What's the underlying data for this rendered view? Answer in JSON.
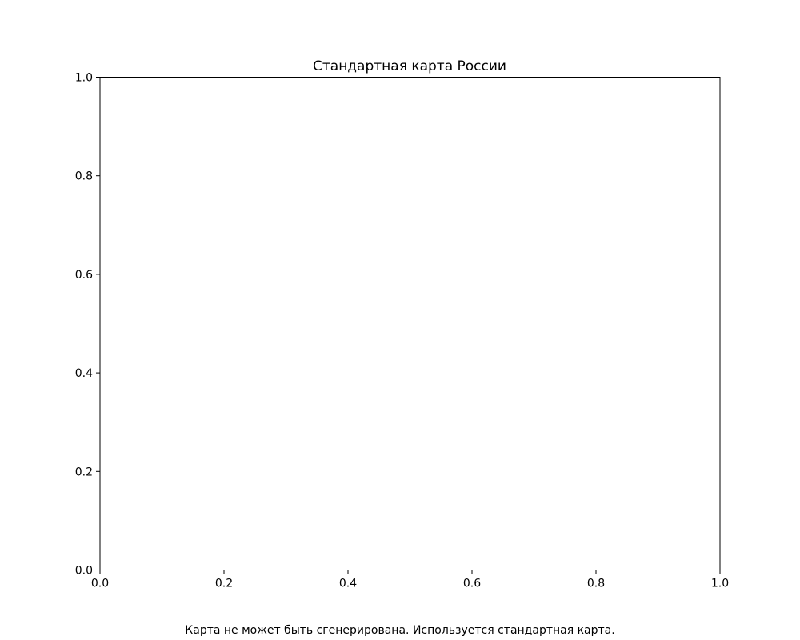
{
  "chart_data": {
    "type": "line",
    "title": "Стандартная карта России",
    "xlabel": "",
    "ylabel": "",
    "xlim": [
      0.0,
      1.0
    ],
    "ylim": [
      0.0,
      1.0
    ],
    "x_ticks": [
      0.0,
      0.2,
      0.4,
      0.6,
      0.8,
      1.0
    ],
    "y_ticks": [
      0.0,
      0.2,
      0.4,
      0.6,
      0.8,
      1.0
    ],
    "x_tick_labels": [
      "0.0",
      "0.2",
      "0.4",
      "0.6",
      "0.8",
      "1.0"
    ],
    "y_tick_labels": [
      "0.0",
      "0.2",
      "0.4",
      "0.6",
      "0.8",
      "1.0"
    ],
    "series": [],
    "grid": false,
    "legend": "none"
  },
  "figure": {
    "footer_text": "Карта не может быть сгенерирована. Используется стандартная карта."
  }
}
